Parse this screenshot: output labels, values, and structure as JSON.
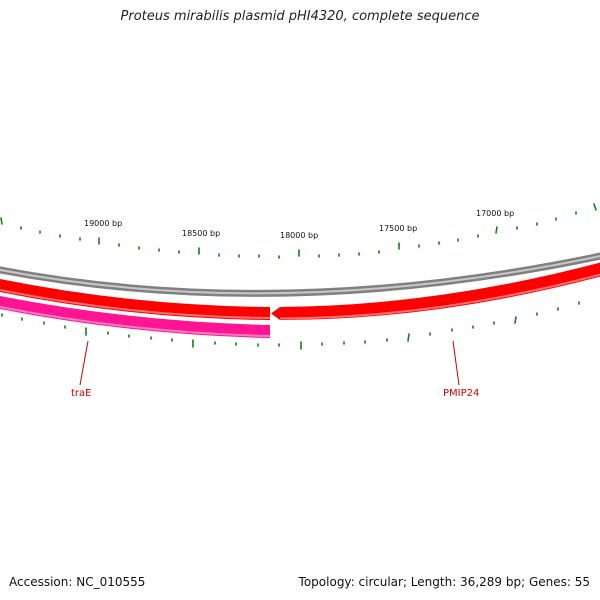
{
  "title": "Proteus mirabilis plasmid pHI4320, complete sequence",
  "footer": {
    "accession": "Accession: NC_010555",
    "summary": "Topology: circular; Length: 36,289 bp; Genes: 55"
  },
  "scale_labels": [
    "19000 bp",
    "18500 bp",
    "18000 bp",
    "17500 bp",
    "17000 bp"
  ],
  "genes": [
    {
      "name": "traE",
      "color": "#cc0000"
    },
    {
      "name": "PMIP24",
      "color": "#cc0000"
    }
  ],
  "colors": {
    "backbone": "#808080",
    "forward_strand": "#ff0000",
    "reverse_strand": "#ff1493",
    "ticks": "#1a7a1a",
    "gene_label": "#cc0000"
  }
}
